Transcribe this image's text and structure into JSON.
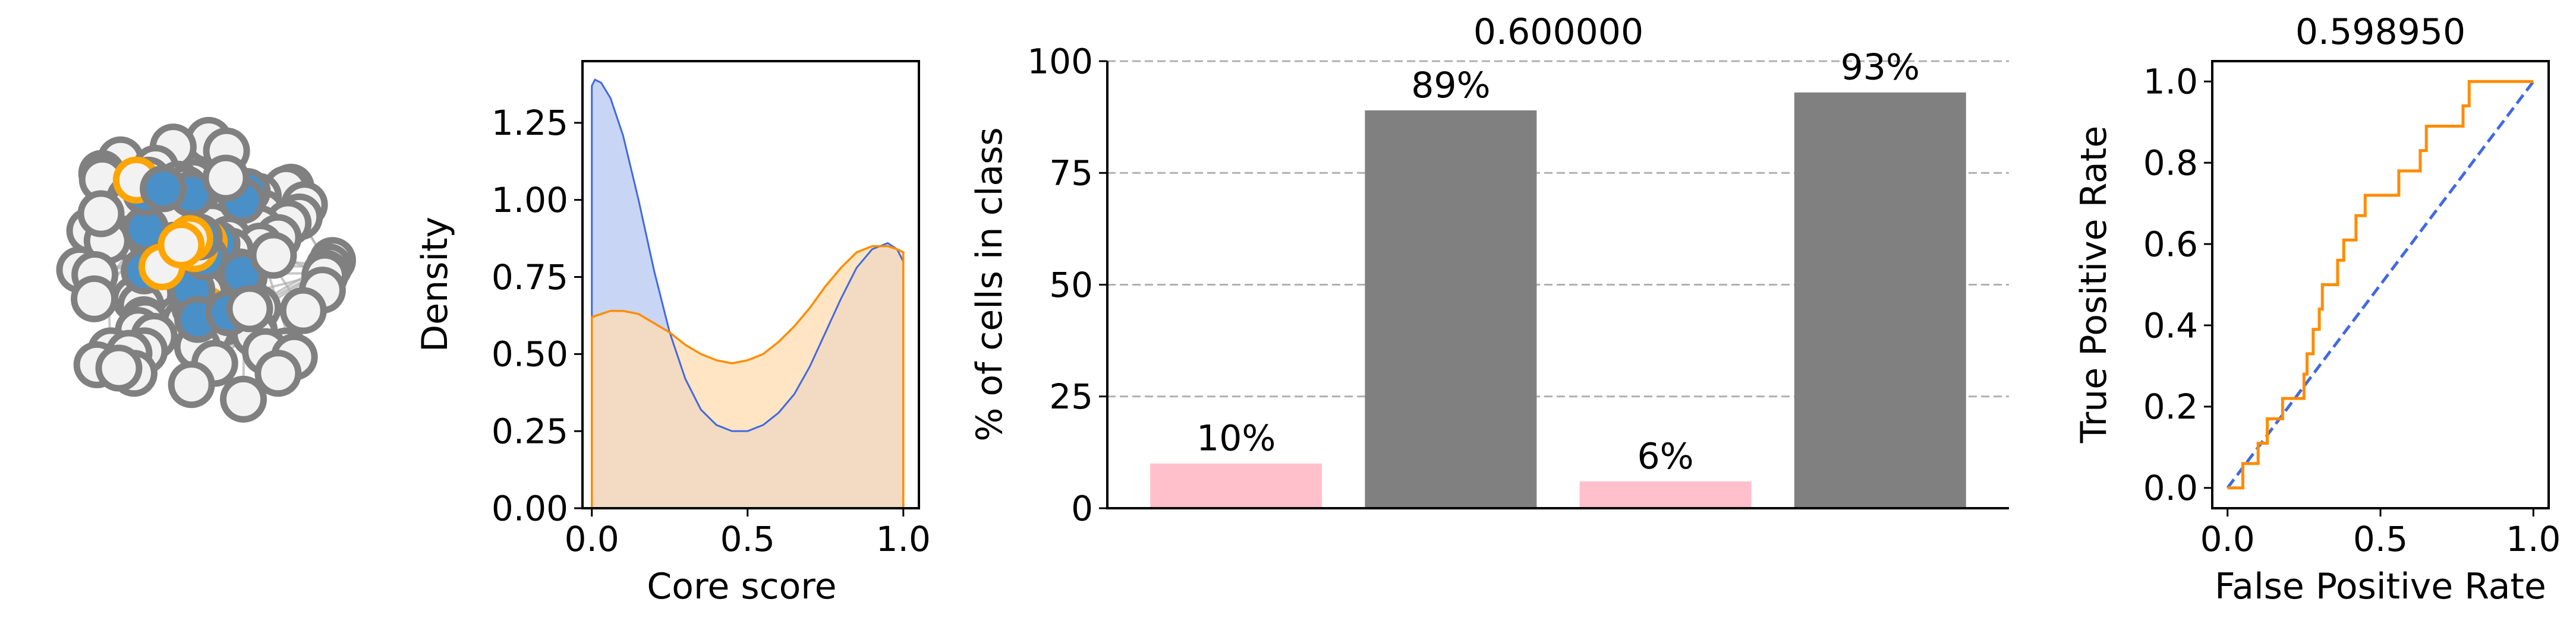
{
  "colors": {
    "gray": "#808080",
    "pink": "#ffc0cb",
    "blue": "#4169e1",
    "blue_fill": "#c9d5f5",
    "orange": "#ff8c00",
    "orange_fill": "#ffdcb0",
    "overlap_fill": "#d2bfb0",
    "node_white": "#f2f2f2",
    "node_blue": "#4a90c8",
    "node_orange_ring": "#ffa500",
    "edge": "#b0b0b0"
  },
  "chart_data": [
    {
      "type": "network",
      "title": "",
      "description": "network graph of nodes colored by class"
    },
    {
      "type": "area",
      "title": "",
      "xlabel": "Core score",
      "ylabel": "Density",
      "xlim": [
        -0.03,
        1.05
      ],
      "ylim": [
        0,
        1.45
      ],
      "xticks": [
        0.0,
        0.5,
        1.0
      ],
      "xtick_labels": [
        "0.0",
        "0.5",
        "1.0"
      ],
      "yticks": [
        0.0,
        0.25,
        0.5,
        0.75,
        1.0,
        1.25
      ],
      "ytick_labels": [
        "0.00",
        "0.25",
        "0.50",
        "0.75",
        "1.00",
        "1.25"
      ],
      "series": [
        {
          "color": "blue",
          "x": [
            0.0,
            0.01,
            0.03,
            0.06,
            0.1,
            0.15,
            0.2,
            0.25,
            0.3,
            0.35,
            0.4,
            0.45,
            0.5,
            0.55,
            0.6,
            0.65,
            0.7,
            0.75,
            0.8,
            0.85,
            0.9,
            0.95,
            0.98,
            1.0
          ],
          "y": [
            1.37,
            1.39,
            1.38,
            1.33,
            1.21,
            1.0,
            0.77,
            0.57,
            0.42,
            0.32,
            0.27,
            0.25,
            0.25,
            0.27,
            0.31,
            0.37,
            0.46,
            0.57,
            0.68,
            0.78,
            0.84,
            0.86,
            0.84,
            0.8
          ]
        },
        {
          "color": "orange",
          "x": [
            0.0,
            0.03,
            0.06,
            0.1,
            0.15,
            0.2,
            0.25,
            0.3,
            0.35,
            0.4,
            0.45,
            0.5,
            0.55,
            0.6,
            0.65,
            0.7,
            0.75,
            0.8,
            0.85,
            0.9,
            0.95,
            0.98,
            1.0
          ],
          "y": [
            0.62,
            0.63,
            0.64,
            0.64,
            0.63,
            0.6,
            0.57,
            0.53,
            0.5,
            0.48,
            0.47,
            0.48,
            0.5,
            0.54,
            0.59,
            0.65,
            0.72,
            0.78,
            0.83,
            0.85,
            0.85,
            0.84,
            0.83
          ]
        }
      ]
    },
    {
      "type": "bar",
      "title": "0.600000",
      "xlabel": "",
      "ylabel": "% of cells in class",
      "ylim": [
        0,
        100
      ],
      "yticks": [
        0,
        25,
        50,
        75,
        100
      ],
      "ytick_labels": [
        "0",
        "25",
        "50",
        "75",
        "100"
      ],
      "grid": "horizontal dashed",
      "values": [
        10,
        89,
        6,
        93
      ],
      "bar_colors": [
        "pink",
        "gray",
        "pink",
        "gray"
      ],
      "data_labels": [
        "10%",
        "89%",
        "6%",
        "93%"
      ]
    },
    {
      "type": "line",
      "title": "0.598950",
      "xlabel": "False Positive Rate",
      "ylabel": "True Positive Rate",
      "xlim": [
        -0.05,
        1.05
      ],
      "ylim": [
        -0.05,
        1.05
      ],
      "xticks": [
        0.0,
        0.5,
        1.0
      ],
      "xtick_labels": [
        "0.0",
        "0.5",
        "1.0"
      ],
      "yticks": [
        0.0,
        0.2,
        0.4,
        0.6,
        0.8,
        1.0
      ],
      "ytick_labels": [
        "0.0",
        "0.2",
        "0.4",
        "0.6",
        "0.8",
        "1.0"
      ],
      "series": [
        {
          "color": "orange",
          "style": "step",
          "x": [
            0.0,
            0.0,
            0.05,
            0.05,
            0.1,
            0.1,
            0.13,
            0.13,
            0.18,
            0.18,
            0.2,
            0.2,
            0.25,
            0.25,
            0.26,
            0.26,
            0.28,
            0.28,
            0.3,
            0.3,
            0.31,
            0.31,
            0.36,
            0.36,
            0.38,
            0.38,
            0.42,
            0.42,
            0.45,
            0.45,
            0.5,
            0.5,
            0.56,
            0.56,
            0.62,
            0.62,
            0.63,
            0.63,
            0.65,
            0.65,
            0.66,
            0.66,
            0.68,
            0.68,
            0.77,
            0.77,
            0.79,
            0.79,
            1.0
          ],
          "y": [
            0.0,
            0.0,
            0.0,
            0.06,
            0.06,
            0.11,
            0.11,
            0.17,
            0.17,
            0.22,
            0.22,
            0.22,
            0.22,
            0.28,
            0.28,
            0.33,
            0.33,
            0.39,
            0.39,
            0.44,
            0.44,
            0.5,
            0.5,
            0.56,
            0.56,
            0.61,
            0.61,
            0.67,
            0.67,
            0.72,
            0.72,
            0.72,
            0.72,
            0.78,
            0.78,
            0.78,
            0.78,
            0.83,
            0.83,
            0.89,
            0.89,
            0.89,
            0.89,
            0.89,
            0.89,
            0.94,
            0.94,
            1.0,
            1.0
          ]
        },
        {
          "color": "blue",
          "style": "dashed",
          "x": [
            0.0,
            1.0
          ],
          "y": [
            0.0,
            1.0
          ]
        }
      ]
    }
  ]
}
